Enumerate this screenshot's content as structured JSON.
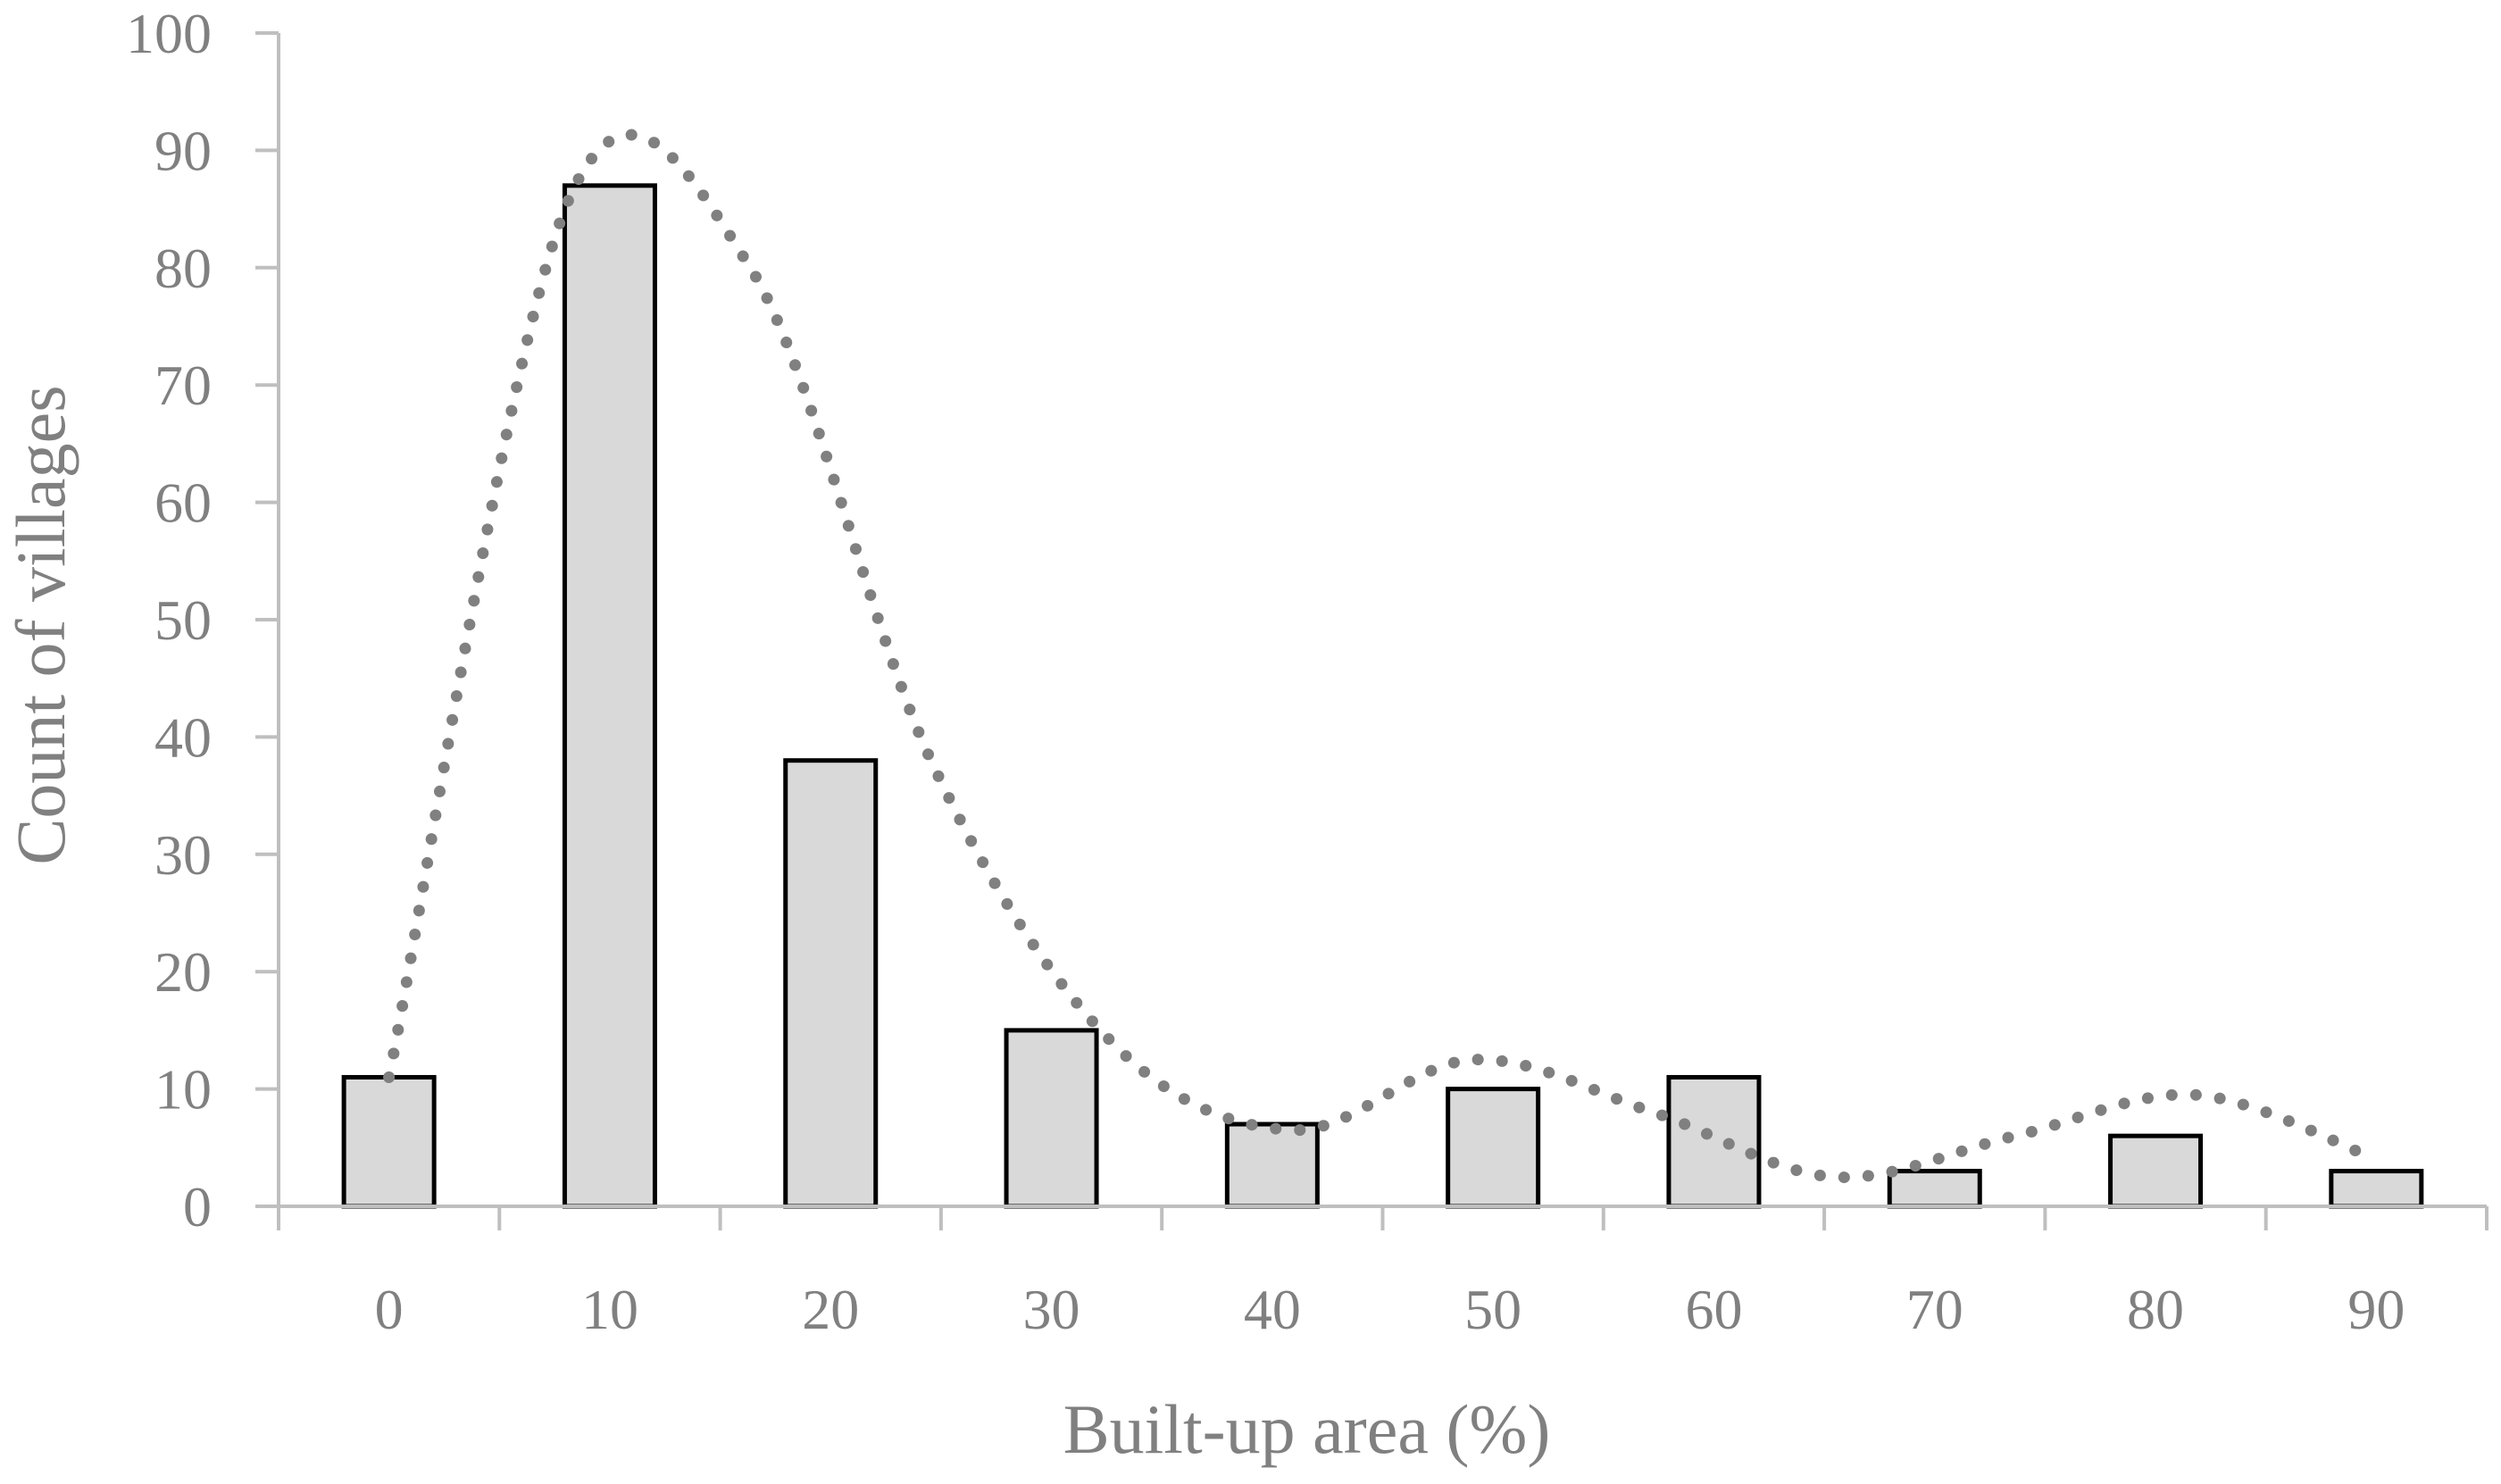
{
  "chart_data": {
    "type": "bar",
    "title": "",
    "xlabel": "Built-up area (%)",
    "ylabel": "Count of villages",
    "categories": [
      "0",
      "10",
      "20",
      "30",
      "40",
      "50",
      "60",
      "70",
      "80",
      "90"
    ],
    "values": [
      11,
      87,
      38,
      15,
      7,
      10,
      11,
      3,
      6,
      3
    ],
    "ylim": [
      0,
      100
    ],
    "yticks": [
      "0",
      "10",
      "20",
      "30",
      "40",
      "50",
      "60",
      "70",
      "80",
      "90",
      "100"
    ],
    "grid": false,
    "legend": "none",
    "trendline": {
      "style": "dotted",
      "type": "smoothed",
      "values": [
        11,
        86,
        80,
        38,
        14,
        6.5,
        12.5,
        8,
        2.5,
        6,
        9.5,
        4
      ]
    },
    "colors": {
      "bar_fill": "#d9d9d9",
      "bar_stroke": "#000000",
      "trendline": "#808080",
      "axis": "#bfbfbf",
      "text": "#808080"
    }
  }
}
